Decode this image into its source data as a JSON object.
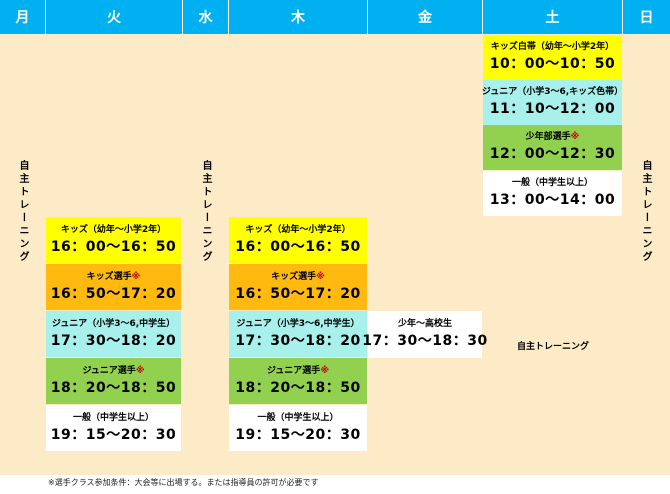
{
  "days": [
    "月",
    "火",
    "水",
    "木",
    "金",
    "土",
    "日"
  ],
  "vertical_training": "自主トレーニング",
  "horizontal_training": "自主トレーニング",
  "tue": [
    {
      "name": "キッズ（幼年〜小学2年）",
      "time": "16：00〜16：50",
      "color": "#ffff00"
    },
    {
      "name": "キッズ選手",
      "mark": "※",
      "time": "16：50〜17：20",
      "color": "#ffb90f"
    },
    {
      "name": "ジュニア（小学3〜6,中学生）",
      "time": "17：30〜18：20",
      "color": "#a7f0eb"
    },
    {
      "name": "ジュニア選手",
      "mark": "※",
      "time": "18：20〜18：50",
      "color": "#92d050"
    },
    {
      "name": "一般（中学生以上）",
      "time": "19：15〜20：30",
      "color": "#ffffff"
    }
  ],
  "thu": [
    {
      "name": "キッズ（幼年〜小学2年）",
      "time": "16：00〜16：50",
      "color": "#ffff00"
    },
    {
      "name": "キッズ選手",
      "mark": "※",
      "time": "16：50〜17：20",
      "color": "#ffb90f"
    },
    {
      "name": "ジュニア（小学3〜6,中学生）",
      "time": "17：30〜18：20",
      "color": "#a7f0eb"
    },
    {
      "name": "ジュニア選手",
      "mark": "※",
      "time": "18：20〜18：50",
      "color": "#92d050"
    },
    {
      "name": "一般（中学生以上）",
      "time": "19：15〜20：30",
      "color": "#ffffff"
    }
  ],
  "fri": [
    {
      "name": "少年〜高校生",
      "time": "17：30〜18：30",
      "color": "#ffffff"
    }
  ],
  "sat": [
    {
      "name": "キッズ白帯（幼年〜小学2年）",
      "time": "10：00〜10：50",
      "color": "#ffff00"
    },
    {
      "name": "ジュニア（小学3〜6,キッズ色帯）",
      "time": "11：10〜12：00",
      "color": "#a7f0eb"
    },
    {
      "name": "少年部選手",
      "mark": "※",
      "time": "12：00〜12：30",
      "color": "#92d050"
    },
    {
      "name": "一般（中学生以上）",
      "time": "13：00〜14：00",
      "color": "#ffffff"
    }
  ],
  "footnote": "※選手クラス参加条件：大会等に出場する。または指導員の許可が必要です"
}
